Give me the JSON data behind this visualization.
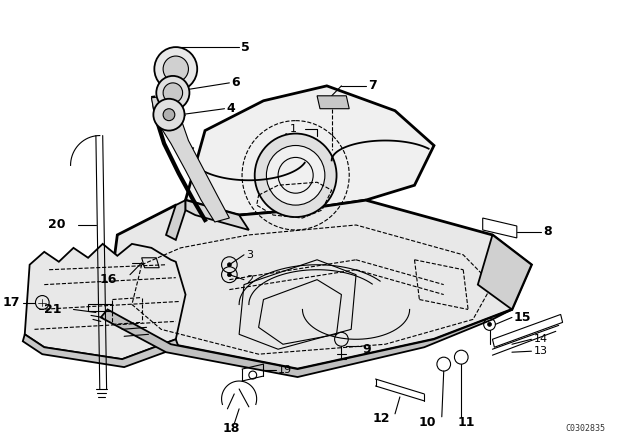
{
  "bg_color": "#ffffff",
  "line_color": "#000000",
  "fig_width": 6.4,
  "fig_height": 4.48,
  "dpi": 100,
  "watermark": "C0302835"
}
